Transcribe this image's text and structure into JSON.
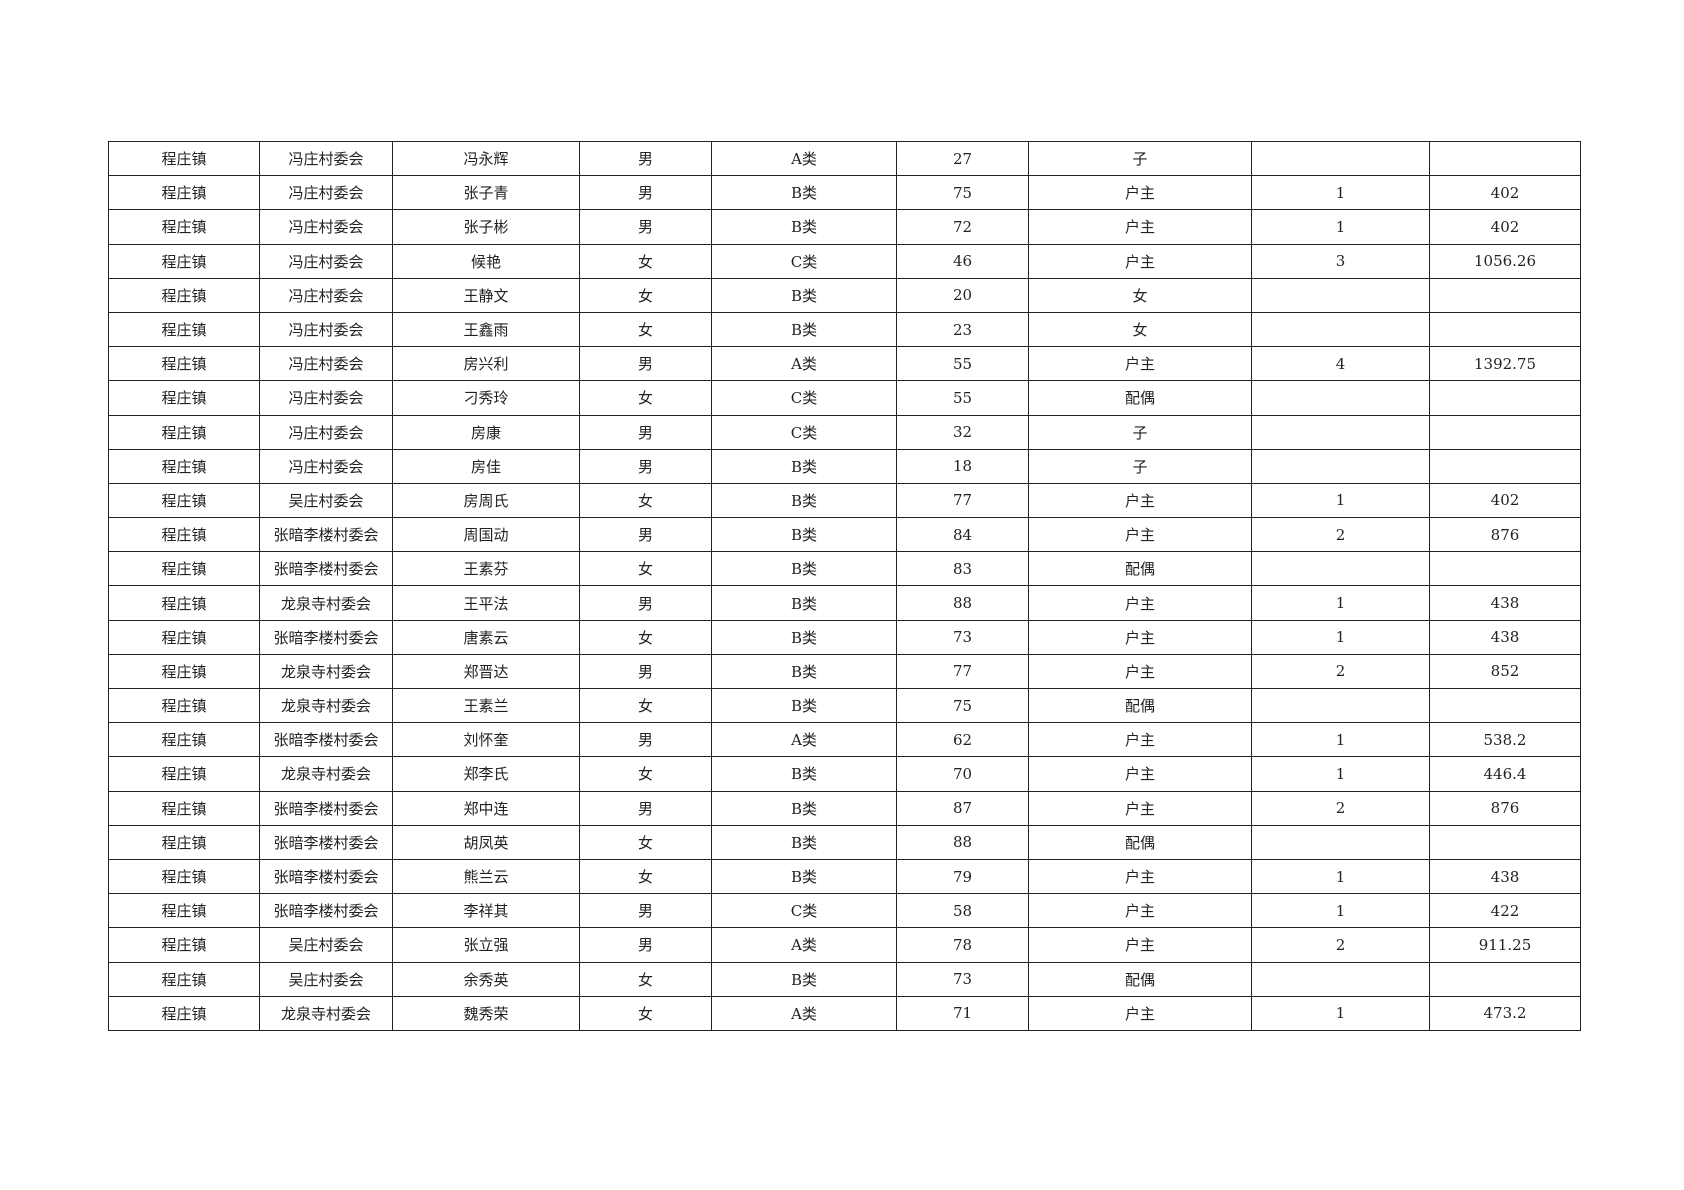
{
  "table": {
    "rows": [
      [
        "程庄镇",
        "冯庄村委会",
        "冯永辉",
        "男",
        "A类",
        27,
        "子",
        null,
        null
      ],
      [
        "程庄镇",
        "冯庄村委会",
        "张子青",
        "男",
        "B类",
        75,
        "户主",
        1,
        402
      ],
      [
        "程庄镇",
        "冯庄村委会",
        "张子彬",
        "男",
        "B类",
        72,
        "户主",
        1,
        402
      ],
      [
        "程庄镇",
        "冯庄村委会",
        "候艳",
        "女",
        "C类",
        46,
        "户主",
        3,
        1056.26
      ],
      [
        "程庄镇",
        "冯庄村委会",
        "王静文",
        "女",
        "B类",
        20,
        "女",
        null,
        null
      ],
      [
        "程庄镇",
        "冯庄村委会",
        "王鑫雨",
        "女",
        "B类",
        23,
        "女",
        null,
        null
      ],
      [
        "程庄镇",
        "冯庄村委会",
        "房兴利",
        "男",
        "A类",
        55,
        "户主",
        4,
        1392.75
      ],
      [
        "程庄镇",
        "冯庄村委会",
        "刁秀玲",
        "女",
        "C类",
        55,
        "配偶",
        null,
        null
      ],
      [
        "程庄镇",
        "冯庄村委会",
        "房康",
        "男",
        "C类",
        32,
        "子",
        null,
        null
      ],
      [
        "程庄镇",
        "冯庄村委会",
        "房佳",
        "男",
        "B类",
        18,
        "子",
        null,
        null
      ],
      [
        "程庄镇",
        "吴庄村委会",
        "房周氏",
        "女",
        "B类",
        77,
        "户主",
        1,
        402
      ],
      [
        "程庄镇",
        "张暗李楼村委会",
        "周国动",
        "男",
        "B类",
        84,
        "户主",
        2,
        876
      ],
      [
        "程庄镇",
        "张暗李楼村委会",
        "王素芬",
        "女",
        "B类",
        83,
        "配偶",
        null,
        null
      ],
      [
        "程庄镇",
        "龙泉寺村委会",
        "王平法",
        "男",
        "B类",
        88,
        "户主",
        1,
        438
      ],
      [
        "程庄镇",
        "张暗李楼村委会",
        "唐素云",
        "女",
        "B类",
        73,
        "户主",
        1,
        438
      ],
      [
        "程庄镇",
        "龙泉寺村委会",
        "郑晋达",
        "男",
        "B类",
        77,
        "户主",
        2,
        852
      ],
      [
        "程庄镇",
        "龙泉寺村委会",
        "王素兰",
        "女",
        "B类",
        75,
        "配偶",
        null,
        null
      ],
      [
        "程庄镇",
        "张暗李楼村委会",
        "刘怀奎",
        "男",
        "A类",
        62,
        "户主",
        1,
        538.2
      ],
      [
        "程庄镇",
        "龙泉寺村委会",
        "郑李氏",
        "女",
        "B类",
        70,
        "户主",
        1,
        446.4
      ],
      [
        "程庄镇",
        "张暗李楼村委会",
        "郑中连",
        "男",
        "B类",
        87,
        "户主",
        2,
        876
      ],
      [
        "程庄镇",
        "张暗李楼村委会",
        "胡凤英",
        "女",
        "B类",
        88,
        "配偶",
        null,
        null
      ],
      [
        "程庄镇",
        "张暗李楼村委会",
        "熊兰云",
        "女",
        "B类",
        79,
        "户主",
        1,
        438
      ],
      [
        "程庄镇",
        "张暗李楼村委会",
        "李祥其",
        "男",
        "C类",
        58,
        "户主",
        1,
        422
      ],
      [
        "程庄镇",
        "吴庄村委会",
        "张立强",
        "男",
        "A类",
        78,
        "户主",
        2,
        911.25
      ],
      [
        "程庄镇",
        "吴庄村委会",
        "余秀英",
        "女",
        "B类",
        73,
        "配偶",
        null,
        null
      ],
      [
        "程庄镇",
        "龙泉寺村委会",
        "魏秀荣",
        "女",
        "A类",
        71,
        "户主",
        1,
        473.2
      ]
    ]
  }
}
